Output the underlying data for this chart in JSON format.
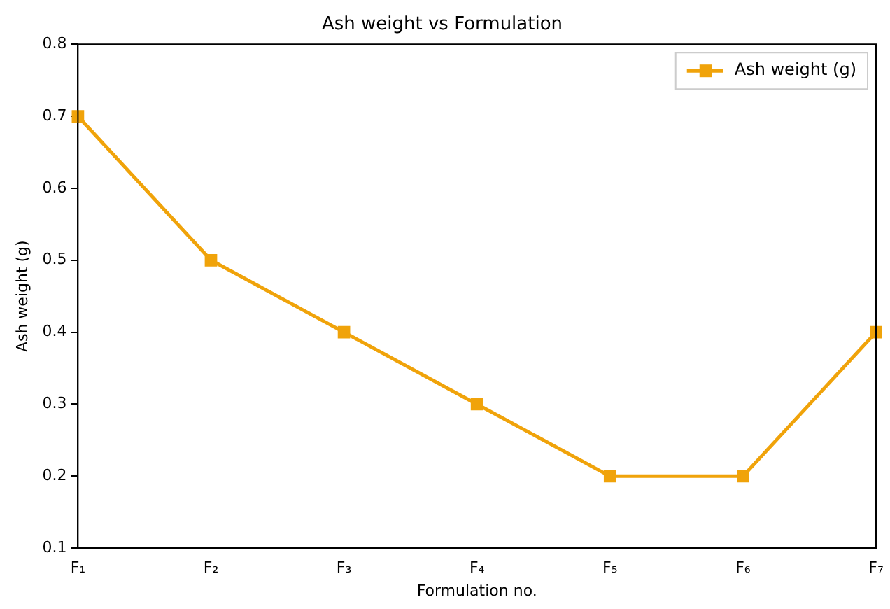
{
  "chart_data": {
    "type": "line",
    "title": "Ash weight vs Formulation",
    "xlabel": "Formulation no.",
    "ylabel": "Ash weight (g)",
    "categories": [
      "F₁",
      "F₂",
      "F₃",
      "F₄",
      "F₅",
      "F₆",
      "F₇"
    ],
    "series": [
      {
        "name": "Ash weight (g)",
        "color": "#f0a30a",
        "values": [
          0.7,
          0.5,
          0.4,
          0.3,
          0.2,
          0.2,
          0.4
        ]
      }
    ],
    "ylim": [
      0.1,
      0.8
    ],
    "yticks": [
      0.1,
      0.2,
      0.3,
      0.4,
      0.5,
      0.6,
      0.7,
      0.8
    ],
    "grid": false,
    "legend": "top right",
    "marker": "square",
    "line_style": "solid"
  }
}
